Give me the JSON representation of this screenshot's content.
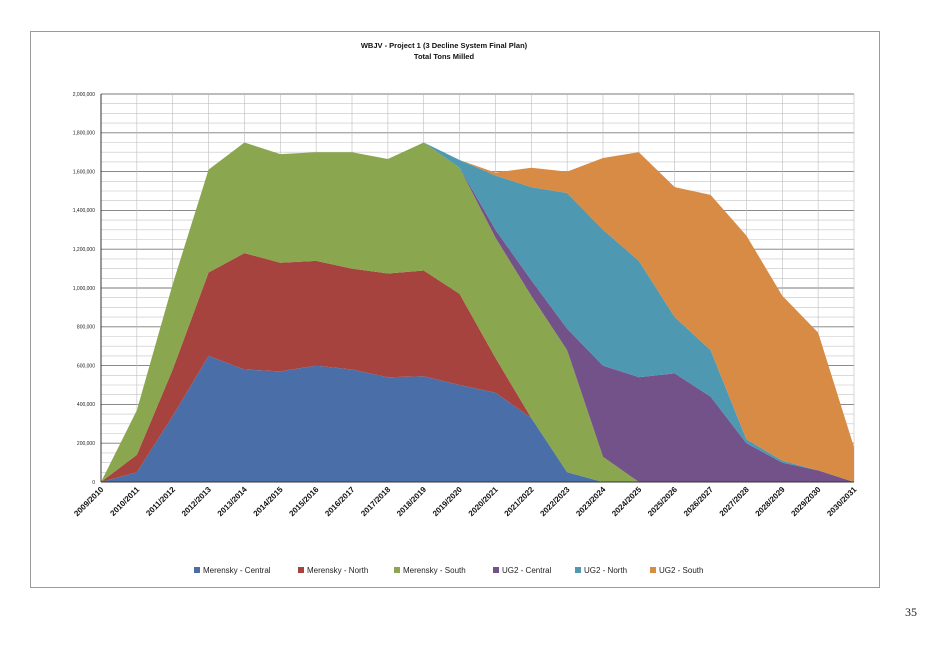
{
  "page": {
    "page_number": "35"
  },
  "chart_data": {
    "type": "area",
    "stacked": true,
    "title": "WBJV - Project 1  (3 Decline System Final Plan)",
    "subtitle": "Total Tons Milled",
    "xlabel": "",
    "ylabel": "",
    "ylim": [
      0,
      2000000
    ],
    "yticks": [
      0,
      200000,
      400000,
      600000,
      800000,
      1000000,
      1200000,
      1400000,
      1600000,
      1800000,
      2000000
    ],
    "ytick_labels": [
      "0",
      "200,000",
      "400,000",
      "600,000",
      "800,000",
      "1,000,000",
      "1,200,000",
      "1,400,000",
      "1,600,000",
      "1,800,000",
      "2,000,000"
    ],
    "grid": true,
    "legend_position": "bottom",
    "categories": [
      "2009/2010",
      "2010/2011",
      "2011/2012",
      "2012/2013",
      "2013/2014",
      "2014/2015",
      "2015/2016",
      "2016/2017",
      "2017/2018",
      "2018/2019",
      "2019/2020",
      "2020/2021",
      "2021/2022",
      "2022/2023",
      "2023/2024",
      "2024/2025",
      "2025/2026",
      "2026/2027",
      "2027/2028",
      "2028/2029",
      "2029/2030",
      "2030/2031"
    ],
    "series": [
      {
        "name": "Merensky - Central",
        "color": "#4a6fa8",
        "values": [
          0,
          50000,
          340000,
          650000,
          580000,
          570000,
          600000,
          580000,
          540000,
          545000,
          500000,
          460000,
          330000,
          50000,
          0,
          0,
          0,
          0,
          0,
          0,
          0,
          0
        ]
      },
      {
        "name": "Merensky - North",
        "color": "#a7433f",
        "values": [
          0,
          90000,
          240000,
          430000,
          600000,
          560000,
          540000,
          520000,
          535000,
          545000,
          470000,
          180000,
          0,
          0,
          0,
          0,
          0,
          0,
          0,
          0,
          0,
          0
        ]
      },
      {
        "name": "Merensky - South",
        "color": "#8aa64e",
        "values": [
          0,
          230000,
          440000,
          530000,
          570000,
          560000,
          560000,
          600000,
          590000,
          660000,
          650000,
          620000,
          630000,
          630000,
          130000,
          0,
          0,
          0,
          0,
          0,
          0,
          0
        ]
      },
      {
        "name": "UG2 - Central",
        "color": "#735189",
        "values": [
          0,
          0,
          0,
          0,
          0,
          0,
          0,
          0,
          0,
          0,
          0,
          40000,
          80000,
          110000,
          470000,
          540000,
          560000,
          440000,
          200000,
          100000,
          60000,
          0
        ]
      },
      {
        "name": "UG2 - North",
        "color": "#4e98b2",
        "values": [
          0,
          0,
          0,
          0,
          0,
          0,
          0,
          0,
          0,
          0,
          40000,
          280000,
          480000,
          700000,
          700000,
          600000,
          290000,
          240000,
          20000,
          10000,
          0,
          0
        ]
      },
      {
        "name": "UG2 - South",
        "color": "#d88b44",
        "values": [
          0,
          0,
          0,
          0,
          0,
          0,
          0,
          0,
          0,
          0,
          0,
          15000,
          100000,
          110000,
          370000,
          560000,
          670000,
          800000,
          1050000,
          850000,
          710000,
          180000
        ]
      }
    ]
  }
}
